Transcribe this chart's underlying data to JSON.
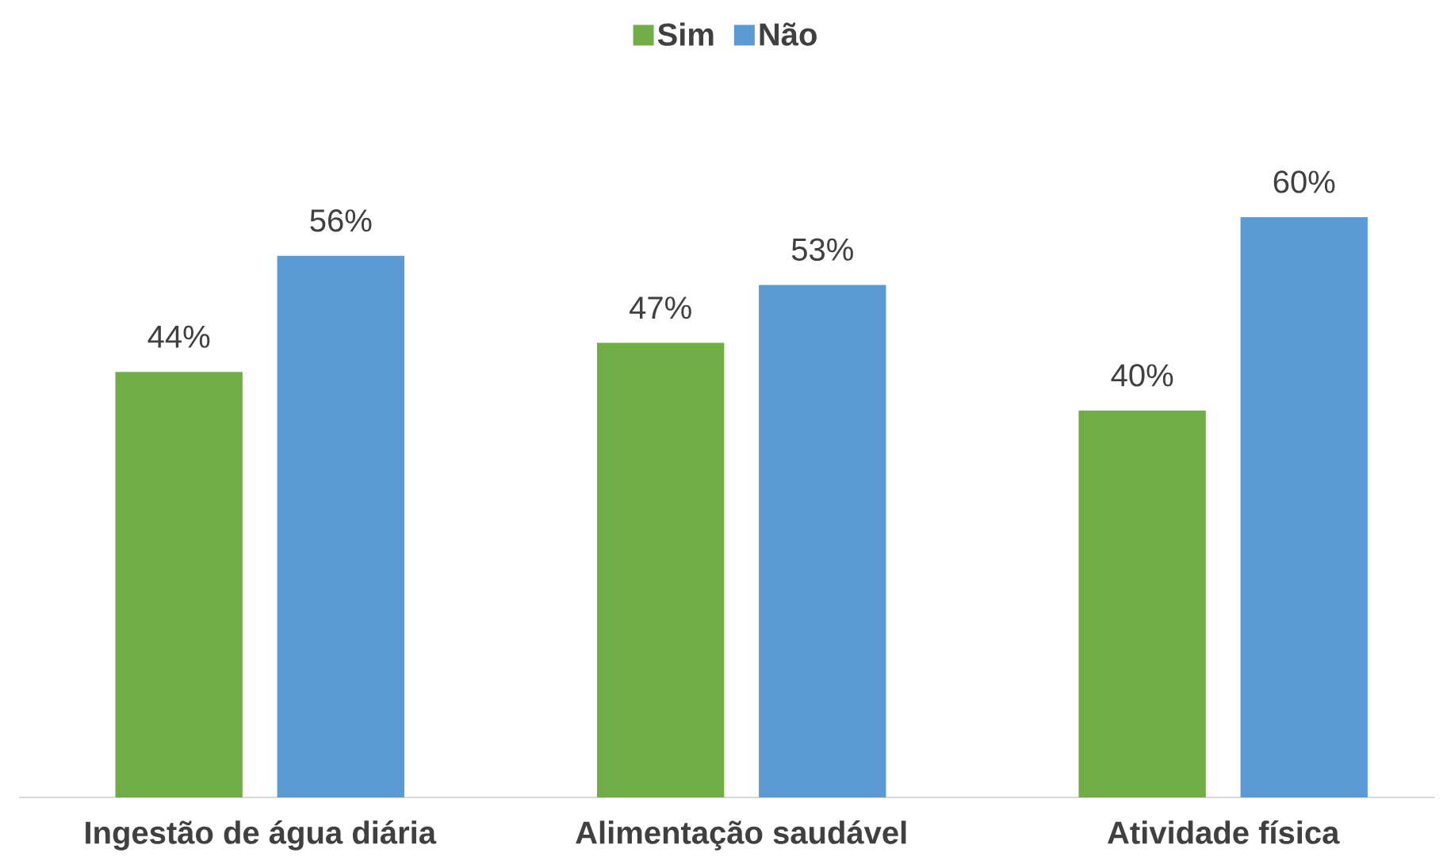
{
  "chart_data": {
    "type": "bar",
    "categories": [
      "Ingestão de água diária",
      "Alimentação saudável",
      "Atividade física"
    ],
    "series": [
      {
        "name": "Sim",
        "color": "#70ad47",
        "values": [
          44,
          47,
          40
        ],
        "value_labels": [
          "44%",
          "47%",
          "40%"
        ]
      },
      {
        "name": "Não",
        "color": "#5b9bd5",
        "values": [
          56,
          53,
          60
        ],
        "value_labels": [
          "56%",
          "53%",
          "60%"
        ]
      }
    ],
    "legend": "top",
    "tick_labels": "x"
  }
}
